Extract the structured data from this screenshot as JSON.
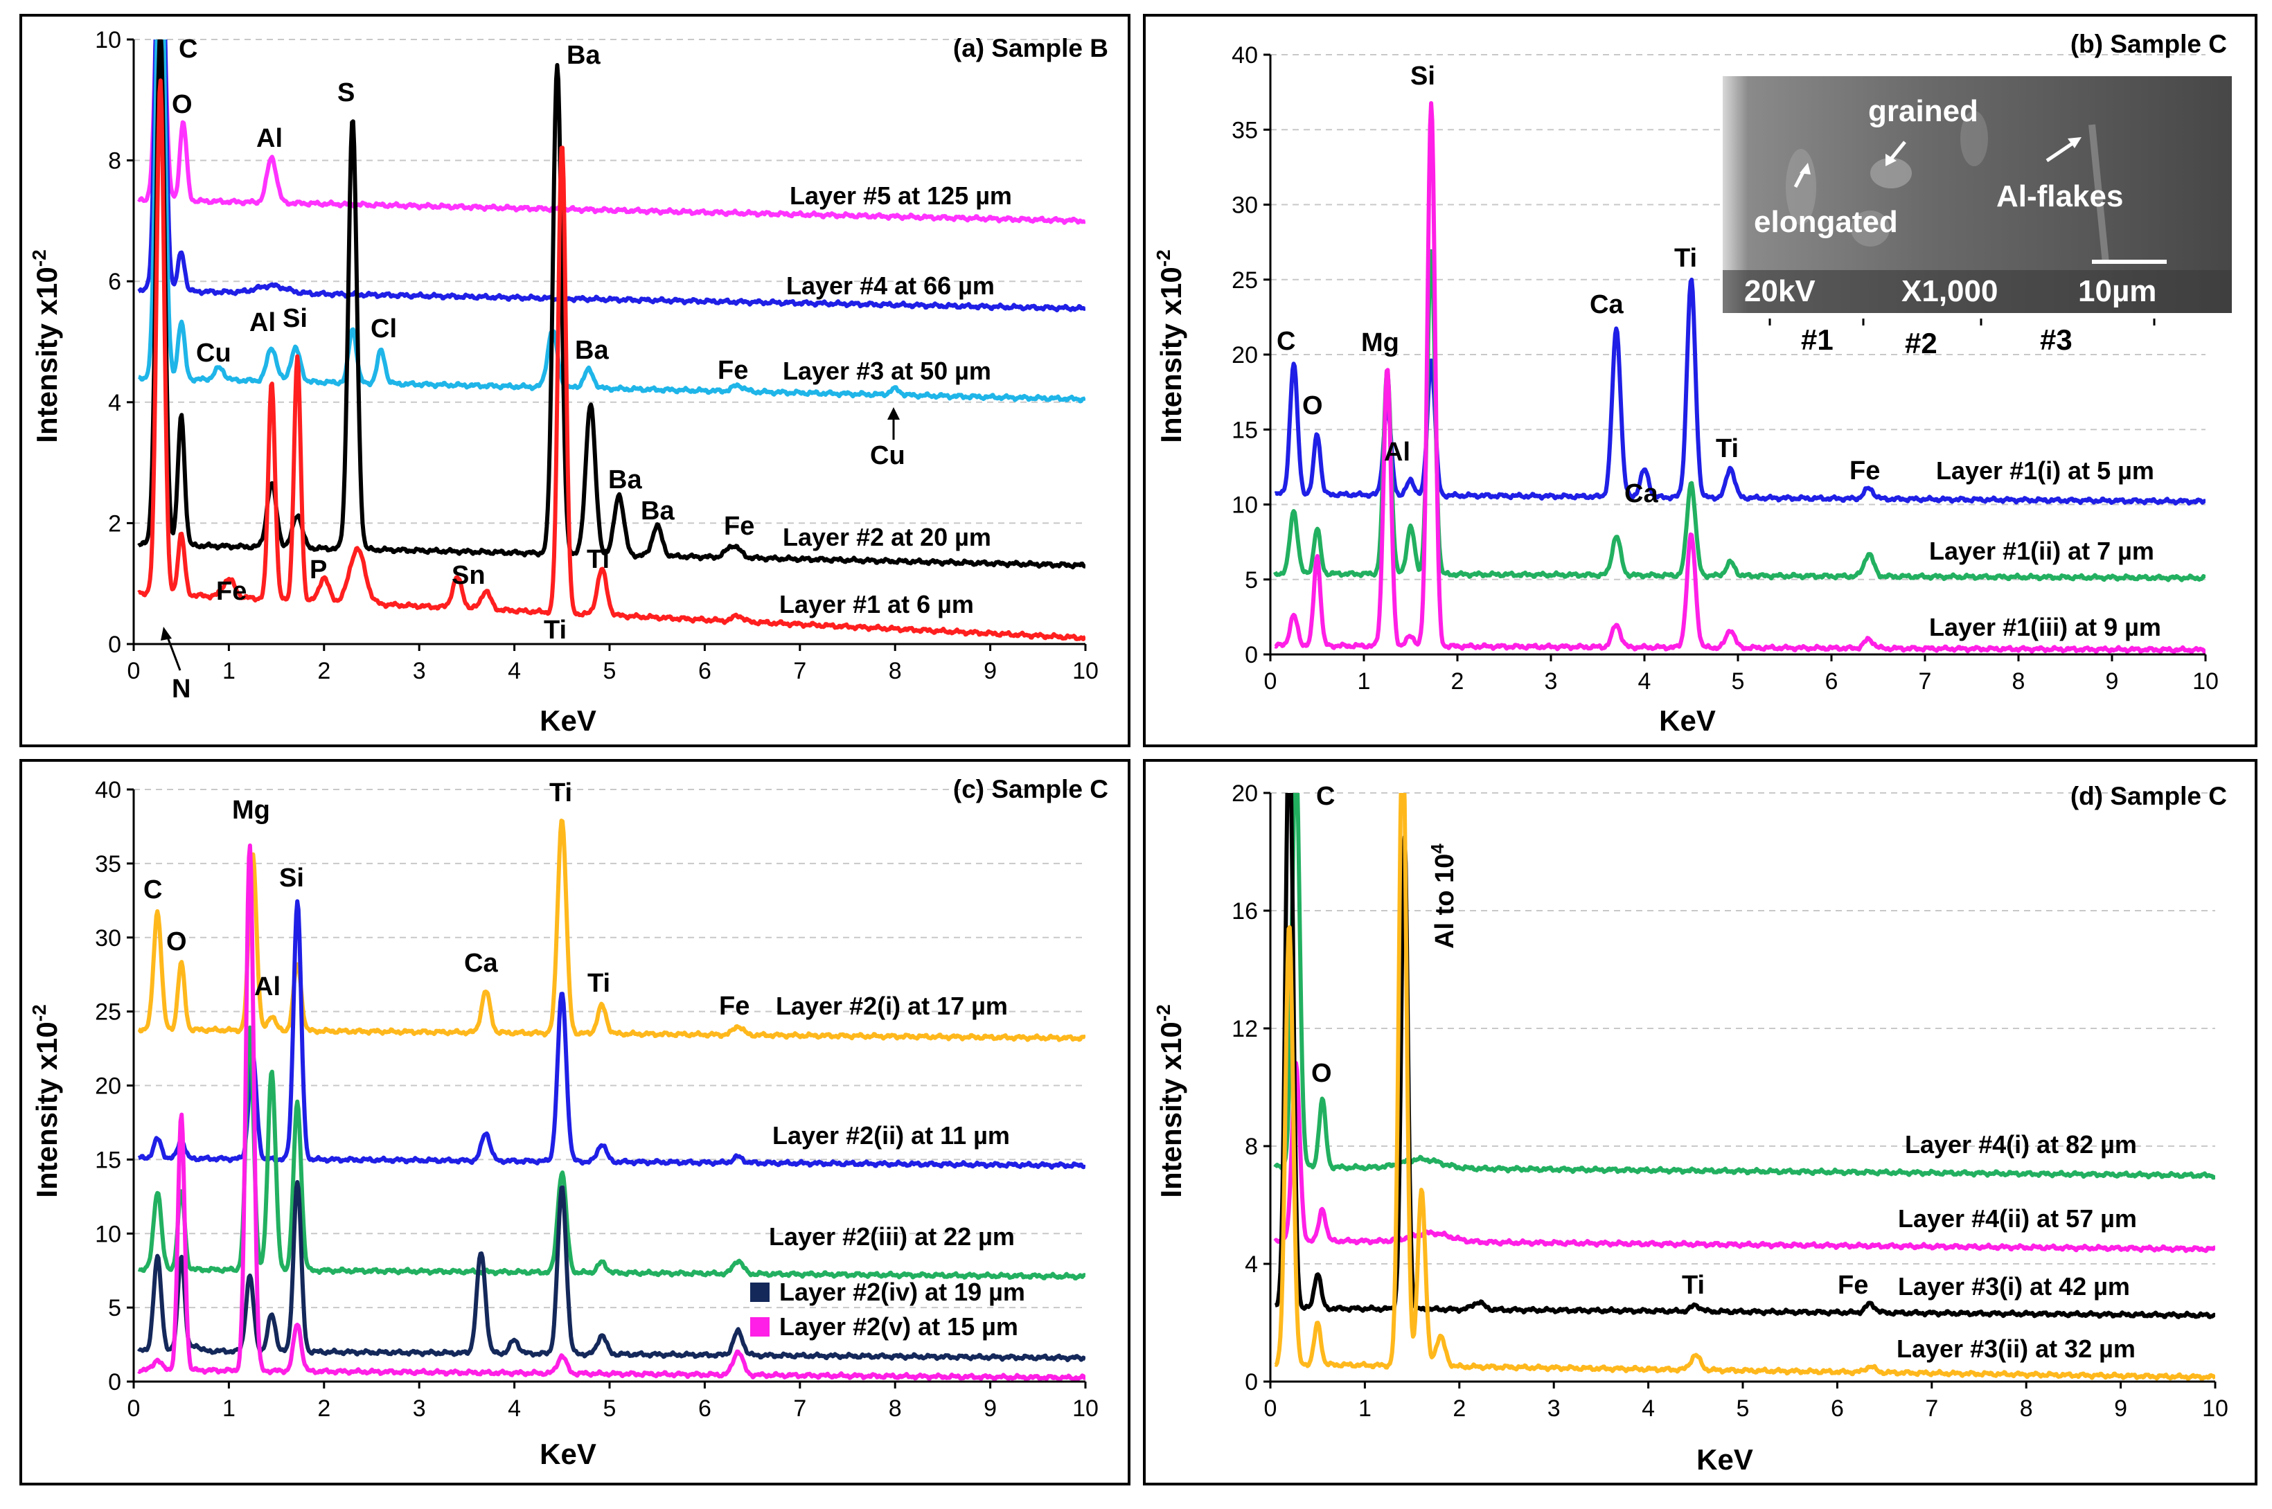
{
  "figure": {
    "x_label": "KeV",
    "y_label_main": "Intensity x10",
    "y_label_exp": "-2"
  },
  "chart_data": [
    {
      "type": "line",
      "panel": "a",
      "title": "(a) Sample B",
      "xlabel": "KeV",
      "ylabel": "Intensity x10-2",
      "xlim": [
        0,
        10
      ],
      "ylim": [
        0,
        10
      ],
      "grid": true,
      "x_ticks": [
        "0",
        "1",
        "2",
        "3",
        "4",
        "5",
        "6",
        "7",
        "8",
        "9",
        "10"
      ],
      "y_ticks": [
        "0",
        "2",
        "4",
        "6",
        "8",
        "10"
      ],
      "series": [
        {
          "name": "Layer #5 at 125 µm",
          "color": "#ff33ff",
          "baseline": [
            7.35,
            7.0
          ],
          "peaks": [
            [
              0.28,
              5.0,
              0.045
            ],
            [
              0.52,
              1.3,
              0.035
            ],
            [
              1.45,
              0.75,
              0.05
            ]
          ]
        },
        {
          "name": "Layer #4 at 66 µm",
          "color": "#1f1fe6",
          "baseline": [
            5.85,
            5.55
          ],
          "peaks": [
            [
              0.28,
              8.0,
              0.045
            ],
            [
              0.5,
              0.65,
              0.035
            ],
            [
              1.45,
              0.12,
              0.15
            ]
          ]
        },
        {
          "name": "Layer #3 at 50 µm",
          "color": "#1fb5e8",
          "baseline": [
            4.4,
            4.05
          ],
          "peaks": [
            [
              0.28,
              8.0,
              0.045
            ],
            [
              0.5,
              0.95,
              0.035
            ],
            [
              0.9,
              0.2,
              0.05
            ],
            [
              1.45,
              0.55,
              0.05
            ],
            [
              1.7,
              0.55,
              0.05
            ],
            [
              2.3,
              0.9,
              0.04
            ],
            [
              2.6,
              0.55,
              0.04
            ],
            [
              4.4,
              0.95,
              0.05
            ],
            [
              4.78,
              0.3,
              0.05
            ],
            [
              6.35,
              0.1,
              0.06
            ],
            [
              8.0,
              0.1,
              0.05
            ]
          ]
        },
        {
          "name": "Layer #2 at 20 µm",
          "color": "#000000",
          "baseline": [
            1.65,
            1.3
          ],
          "peaks": [
            [
              0.28,
              8.5,
              0.045
            ],
            [
              0.5,
              2.15,
              0.035
            ],
            [
              1.45,
              1.05,
              0.05
            ],
            [
              1.72,
              0.55,
              0.05
            ],
            [
              2.3,
              7.1,
              0.045
            ],
            [
              4.45,
              8.1,
              0.045
            ],
            [
              4.8,
              2.5,
              0.05
            ],
            [
              5.1,
              1.0,
              0.05
            ],
            [
              5.5,
              0.5,
              0.05
            ],
            [
              6.3,
              0.2,
              0.07
            ]
          ]
        },
        {
          "name": "Layer #1 at 6 µm",
          "color": "#ff1f1f",
          "baseline": [
            0.85,
            0.1
          ],
          "peaks": [
            [
              0.28,
              8.5,
              0.04
            ],
            [
              0.5,
              1.0,
              0.035
            ],
            [
              1.0,
              0.3,
              0.06
            ],
            [
              1.45,
              3.6,
              0.035
            ],
            [
              1.72,
              4.0,
              0.035
            ],
            [
              2.0,
              0.4,
              0.05
            ],
            [
              2.35,
              0.9,
              0.08
            ],
            [
              3.4,
              0.5,
              0.05
            ],
            [
              3.7,
              0.3,
              0.05
            ],
            [
              4.5,
              7.8,
              0.04
            ],
            [
              4.92,
              0.75,
              0.05
            ],
            [
              6.35,
              0.1,
              0.05
            ]
          ]
        }
      ],
      "annotations": [
        "C",
        "O",
        "Al",
        "S",
        "Ba",
        "Cu",
        "Al",
        "Si",
        "Cl",
        "Ba",
        "Fe",
        "Cu",
        "Ba",
        "Ba",
        "Fe",
        "Fe",
        "P",
        "Sn",
        "Ti",
        "Ti",
        "N"
      ],
      "legend": [
        "Layer #5 at 125 µm",
        "Layer #4 at 66 µm",
        "Layer #3 at 50 µm",
        "Layer #2 at 20 µm",
        "Layer #1 at 6 µm"
      ]
    },
    {
      "type": "line",
      "panel": "b",
      "title": "(b) Sample C",
      "xlabel": "KeV",
      "ylabel": "Intensity x10-2",
      "xlim": [
        0,
        10
      ],
      "ylim": [
        0,
        40
      ],
      "grid": true,
      "x_ticks": [
        "0",
        "1",
        "2",
        "3",
        "4",
        "5",
        "6",
        "7",
        "8",
        "9",
        "10"
      ],
      "y_ticks": [
        "0",
        "5",
        "10",
        "15",
        "20",
        "25",
        "30",
        "35",
        "40"
      ],
      "series": [
        {
          "name": "Layer #1(i) at 5 µm",
          "color": "#1f1fe6",
          "baseline": [
            10.7,
            10.2
          ],
          "peaks": [
            [
              0.25,
              8.7,
              0.04
            ],
            [
              0.5,
              4.1,
              0.035
            ],
            [
              1.25,
              5.9,
              0.04
            ],
            [
              1.5,
              1.0,
              0.04
            ],
            [
              1.72,
              9.0,
              0.04
            ],
            [
              3.7,
              11.2,
              0.045
            ],
            [
              4.0,
              1.8,
              0.045
            ],
            [
              4.5,
              14.5,
              0.045
            ],
            [
              4.92,
              2.0,
              0.045
            ],
            [
              6.4,
              0.7,
              0.05
            ]
          ]
        },
        {
          "name": "Layer #1(ii) at 7 µm",
          "color": "#22b060",
          "baseline": [
            5.4,
            5.1
          ],
          "peaks": [
            [
              0.25,
              4.2,
              0.04
            ],
            [
              0.5,
              3.0,
              0.035
            ],
            [
              1.25,
              13.6,
              0.04
            ],
            [
              1.5,
              3.2,
              0.04
            ],
            [
              1.72,
              21.5,
              0.04
            ],
            [
              3.7,
              2.6,
              0.045
            ],
            [
              4.5,
              6.2,
              0.045
            ],
            [
              4.92,
              0.9,
              0.045
            ],
            [
              6.4,
              1.5,
              0.05
            ]
          ]
        },
        {
          "name": "Layer #1(iii) at 9 µm",
          "color": "#ff1fe6",
          "baseline": [
            0.6,
            0.3
          ],
          "peaks": [
            [
              0.25,
              2.0,
              0.04
            ],
            [
              0.5,
              6.0,
              0.035
            ],
            [
              1.25,
              18.5,
              0.04
            ],
            [
              1.5,
              0.7,
              0.04
            ],
            [
              1.72,
              36.3,
              0.04
            ],
            [
              3.7,
              1.5,
              0.045
            ],
            [
              4.5,
              7.5,
              0.045
            ],
            [
              4.92,
              1.2,
              0.045
            ],
            [
              6.4,
              0.6,
              0.05
            ]
          ]
        }
      ],
      "annotations": [
        "Si",
        "C",
        "O",
        "Mg",
        "Al",
        "Ca",
        "Ca",
        "Ti",
        "Ti",
        "Fe"
      ],
      "legend": [
        "Layer #1(i) at 5 µm",
        "Layer #1(ii) at 7 µm",
        "Layer #1(iii) at 9 µm"
      ],
      "inset": {
        "labels": [
          "grained",
          "elongated",
          "Al-flakes",
          "20kV",
          "X1,000",
          "10µm"
        ],
        "captions": [
          "#1",
          "#2",
          "#3"
        ]
      }
    },
    {
      "type": "line",
      "panel": "c",
      "title": "(c) Sample C",
      "xlabel": "KeV",
      "ylabel": "Intensity x10-2",
      "xlim": [
        0,
        10
      ],
      "ylim": [
        0,
        40
      ],
      "grid": true,
      "x_ticks": [
        "0",
        "1",
        "2",
        "3",
        "4",
        "5",
        "6",
        "7",
        "8",
        "9",
        "10"
      ],
      "y_ticks": [
        "0",
        "5",
        "10",
        "15",
        "20",
        "25",
        "30",
        "35",
        "40"
      ],
      "series": [
        {
          "name": "Layer #2(i) at 17 µm",
          "color": "#ffb81c",
          "baseline": [
            23.8,
            23.2
          ],
          "peaks": [
            [
              0.25,
              8.0,
              0.04
            ],
            [
              0.5,
              4.5,
              0.035
            ],
            [
              1.25,
              12.0,
              0.04
            ],
            [
              1.45,
              1.0,
              0.04
            ],
            [
              1.72,
              4.5,
              0.04
            ],
            [
              3.7,
              2.8,
              0.045
            ],
            [
              4.5,
              14.5,
              0.045
            ],
            [
              4.92,
              1.9,
              0.045
            ],
            [
              6.35,
              0.6,
              0.05
            ]
          ]
        },
        {
          "name": "Layer #2(ii) at 11 µm",
          "color": "#1f1fe6",
          "baseline": [
            15.1,
            14.6
          ],
          "peaks": [
            [
              0.25,
              1.3,
              0.04
            ],
            [
              0.5,
              1.3,
              0.035
            ],
            [
              1.25,
              7.0,
              0.04
            ],
            [
              1.72,
              17.4,
              0.04
            ],
            [
              3.7,
              1.9,
              0.045
            ],
            [
              4.5,
              11.4,
              0.045
            ],
            [
              4.92,
              1.2,
              0.045
            ],
            [
              6.35,
              0.4,
              0.05
            ]
          ]
        },
        {
          "name": "Layer #2(iii) at 22 µm",
          "color": "#22b060",
          "baseline": [
            7.6,
            7.1
          ],
          "peaks": [
            [
              0.25,
              5.3,
              0.04
            ],
            [
              0.5,
              5.3,
              0.035
            ],
            [
              1.22,
              16.4,
              0.04
            ],
            [
              1.45,
              13.5,
              0.04
            ],
            [
              1.72,
              11.3,
              0.04
            ],
            [
              4.5,
              6.8,
              0.045
            ],
            [
              4.92,
              0.7,
              0.045
            ],
            [
              6.35,
              0.9,
              0.05
            ]
          ]
        },
        {
          "name": "Layer #2(iv) at 19 µm",
          "color": "#14285a",
          "baseline": [
            2.1,
            1.6
          ],
          "peaks": [
            [
              0.25,
              6.3,
              0.04
            ],
            [
              0.5,
              6.5,
              0.035
            ],
            [
              0.65,
              0.4,
              0.04
            ],
            [
              1.22,
              5.1,
              0.04
            ],
            [
              1.45,
              2.5,
              0.04
            ],
            [
              1.72,
              11.5,
              0.04
            ],
            [
              3.65,
              6.8,
              0.045
            ],
            [
              4.0,
              0.9,
              0.045
            ],
            [
              4.5,
              11.2,
              0.045
            ],
            [
              4.92,
              1.3,
              0.045
            ],
            [
              6.35,
              1.6,
              0.05
            ]
          ]
        },
        {
          "name": "Layer #2(v) at 15 µm",
          "color": "#ff1fe6",
          "baseline": [
            0.8,
            0.25
          ],
          "peaks": [
            [
              0.25,
              0.7,
              0.04
            ],
            [
              0.5,
              17.2,
              0.035
            ],
            [
              1.22,
              35.6,
              0.04
            ],
            [
              1.72,
              3.2,
              0.04
            ],
            [
              4.5,
              1.2,
              0.045
            ],
            [
              6.35,
              1.6,
              0.05
            ]
          ]
        }
      ],
      "annotations": [
        "Mg",
        "Si",
        "C",
        "O",
        "Al",
        "Ca",
        "Ti",
        "Ti",
        "Fe"
      ],
      "legend": [
        "Layer #2(i) at 17 µm",
        "Layer #2(ii) at 11 µm",
        "Layer #2(iii) at 22 µm",
        "Layer #2(iv) at 19 µm",
        "Layer #2(v) at 15 µm"
      ]
    },
    {
      "type": "line",
      "panel": "d",
      "title": "(d) Sample C",
      "xlabel": "KeV",
      "ylabel": "Intensity x10-2",
      "xlim": [
        0,
        10
      ],
      "ylim": [
        0,
        20
      ],
      "grid": true,
      "x_ticks": [
        "0",
        "1",
        "2",
        "3",
        "4",
        "5",
        "6",
        "7",
        "8",
        "9",
        "10"
      ],
      "y_ticks": [
        "0",
        "4",
        "8",
        "12",
        "16",
        "20"
      ],
      "series": [
        {
          "name": "Layer #4(i) at 82 µm",
          "color": "#22b060",
          "baseline": [
            7.3,
            7.0
          ],
          "peaks": [
            [
              0.27,
              14.0,
              0.04
            ],
            [
              0.55,
              2.3,
              0.035
            ],
            [
              1.6,
              0.3,
              0.2
            ]
          ]
        },
        {
          "name": "Layer #4(ii) at 57 µm",
          "color": "#ff1fe6",
          "baseline": [
            4.8,
            4.5
          ],
          "peaks": [
            [
              0.27,
              6.0,
              0.04
            ],
            [
              0.55,
              1.1,
              0.035
            ],
            [
              1.7,
              0.3,
              0.2
            ]
          ]
        },
        {
          "name": "Layer #3(i) at 42 µm",
          "color": "#000000",
          "baseline": [
            2.5,
            2.25
          ],
          "peaks": [
            [
              0.2,
              20.0,
              0.04
            ],
            [
              0.5,
              1.2,
              0.035
            ],
            [
              1.42,
              16.0,
              0.035
            ],
            [
              2.2,
              0.25,
              0.06
            ],
            [
              4.5,
              0.2,
              0.05
            ],
            [
              6.35,
              0.3,
              0.05
            ]
          ]
        },
        {
          "name": "Layer #3(ii) at 32 µm",
          "color": "#ffb81c",
          "baseline": [
            0.6,
            0.15
          ],
          "peaks": [
            [
              0.2,
              15.0,
              0.04
            ],
            [
              0.5,
              1.4,
              0.035
            ],
            [
              1.4,
              22.0,
              0.04
            ],
            [
              1.6,
              6.0,
              0.04
            ],
            [
              1.8,
              1.0,
              0.05
            ],
            [
              4.5,
              0.5,
              0.05
            ],
            [
              6.35,
              0.2,
              0.05
            ]
          ]
        }
      ],
      "annotations": [
        "C",
        "O",
        "Al to 10",
        "4",
        "Ti",
        "Fe"
      ],
      "legend": [
        "Layer #4(i) at 82 µm",
        "Layer #4(ii) at 57 µm",
        "Layer #3(i) at 42 µm",
        "Layer #3(ii) at 32 µm"
      ]
    }
  ]
}
